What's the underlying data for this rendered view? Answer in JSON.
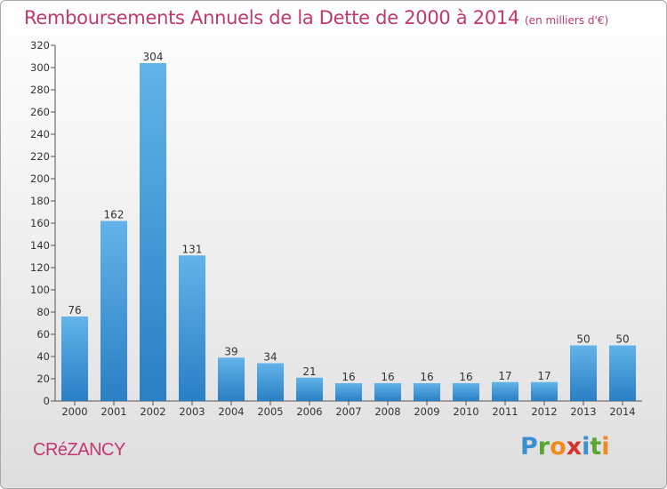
{
  "title": "Remboursements Annuels de la Dette de 2000 à 2014",
  "unit": "(en milliers d'€)",
  "commune": "CRéZANCY",
  "logo": {
    "text": "Proxiti",
    "letters": [
      {
        "ch": "P",
        "color": "#3a8fd0"
      },
      {
        "ch": "r",
        "color": "#5aa532"
      },
      {
        "ch": "o",
        "color": "#f08a1c"
      },
      {
        "ch": "x",
        "color": "#d7322c"
      },
      {
        "ch": "i",
        "color": "#3a8fd0"
      },
      {
        "ch": "t",
        "color": "#5aa532"
      },
      {
        "ch": "i",
        "color": "#f08a1c"
      }
    ]
  },
  "colors": {
    "title": "#c2386e",
    "bar_top": "#62b3ea",
    "bar_bottom": "#2a7fc4"
  },
  "chart_data": {
    "type": "bar",
    "title": "Remboursements Annuels de la Dette de 2000 à 2014",
    "xlabel": "",
    "ylabel": "",
    "categories": [
      "2000",
      "2001",
      "2002",
      "2003",
      "2004",
      "2005",
      "2006",
      "2007",
      "2008",
      "2009",
      "2010",
      "2011",
      "2012",
      "2013",
      "2014"
    ],
    "values": [
      76,
      162,
      304,
      131,
      39,
      34,
      21,
      16,
      16,
      16,
      16,
      17,
      17,
      50,
      50
    ],
    "ylim": [
      0,
      320
    ],
    "yticks": [
      0,
      20,
      40,
      60,
      80,
      100,
      120,
      140,
      160,
      180,
      200,
      220,
      240,
      260,
      280,
      300,
      320
    ],
    "grid": false,
    "data_labels": true
  }
}
